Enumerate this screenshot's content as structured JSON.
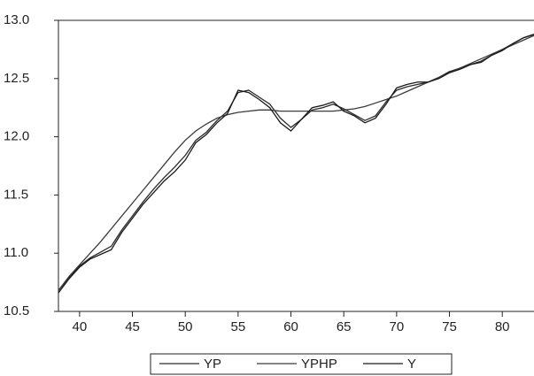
{
  "chart_data": {
    "type": "line",
    "x": [
      38,
      39,
      40,
      41,
      42,
      43,
      44,
      45,
      46,
      47,
      48,
      49,
      50,
      51,
      52,
      53,
      54,
      55,
      56,
      57,
      58,
      59,
      60,
      61,
      62,
      63,
      64,
      65,
      66,
      67,
      68,
      69,
      70,
      71,
      72,
      73,
      74,
      75,
      76,
      77,
      78,
      79,
      80,
      81,
      82,
      83
    ],
    "series": [
      {
        "name": "YP",
        "color": "#2a2a2a",
        "values": [
          10.68,
          10.79,
          10.89,
          10.96,
          11.01,
          11.06,
          11.2,
          11.32,
          11.44,
          11.55,
          11.65,
          11.74,
          11.84,
          11.97,
          12.04,
          12.14,
          12.22,
          12.38,
          12.4,
          12.34,
          12.28,
          12.16,
          12.08,
          12.15,
          12.23,
          12.25,
          12.28,
          12.24,
          12.19,
          12.14,
          12.18,
          12.3,
          12.4,
          12.43,
          12.45,
          12.47,
          12.51,
          12.56,
          12.59,
          12.62,
          12.65,
          12.7,
          12.75,
          12.8,
          12.85,
          12.88
        ]
      },
      {
        "name": "YPHP",
        "color": "#3a3a3a",
        "values": [
          10.68,
          10.8,
          10.9,
          11.0,
          11.1,
          11.21,
          11.32,
          11.43,
          11.54,
          11.65,
          11.76,
          11.87,
          11.97,
          12.05,
          12.11,
          12.16,
          12.19,
          12.21,
          12.22,
          12.23,
          12.23,
          12.22,
          12.22,
          12.22,
          12.22,
          12.22,
          12.22,
          12.23,
          12.24,
          12.26,
          12.29,
          12.32,
          12.35,
          12.39,
          12.43,
          12.47,
          12.51,
          12.55,
          12.59,
          12.63,
          12.67,
          12.71,
          12.75,
          12.79,
          12.83,
          12.87
        ]
      },
      {
        "name": "Y",
        "color": "#1a1a1a",
        "values": [
          10.66,
          10.78,
          10.88,
          10.95,
          10.99,
          11.03,
          11.18,
          11.3,
          11.42,
          11.52,
          11.62,
          11.7,
          11.8,
          11.95,
          12.02,
          12.12,
          12.2,
          12.4,
          12.38,
          12.32,
          12.25,
          12.12,
          12.05,
          12.15,
          12.25,
          12.27,
          12.3,
          12.22,
          12.18,
          12.12,
          12.16,
          12.28,
          12.42,
          12.45,
          12.47,
          12.47,
          12.5,
          12.55,
          12.58,
          12.62,
          12.64,
          12.7,
          12.74,
          12.8,
          12.85,
          12.88
        ]
      }
    ],
    "xlim": [
      38,
      83
    ],
    "ylim": [
      10.5,
      13.0
    ],
    "xticks": [
      40,
      45,
      50,
      55,
      60,
      65,
      70,
      75,
      80
    ],
    "yticks": [
      10.5,
      {
        "value": 11,
        "label": "11.0"
      },
      11.5,
      {
        "value": 12,
        "label": "12.0"
      },
      12.5,
      {
        "value": 13,
        "label": "13.0"
      }
    ]
  }
}
